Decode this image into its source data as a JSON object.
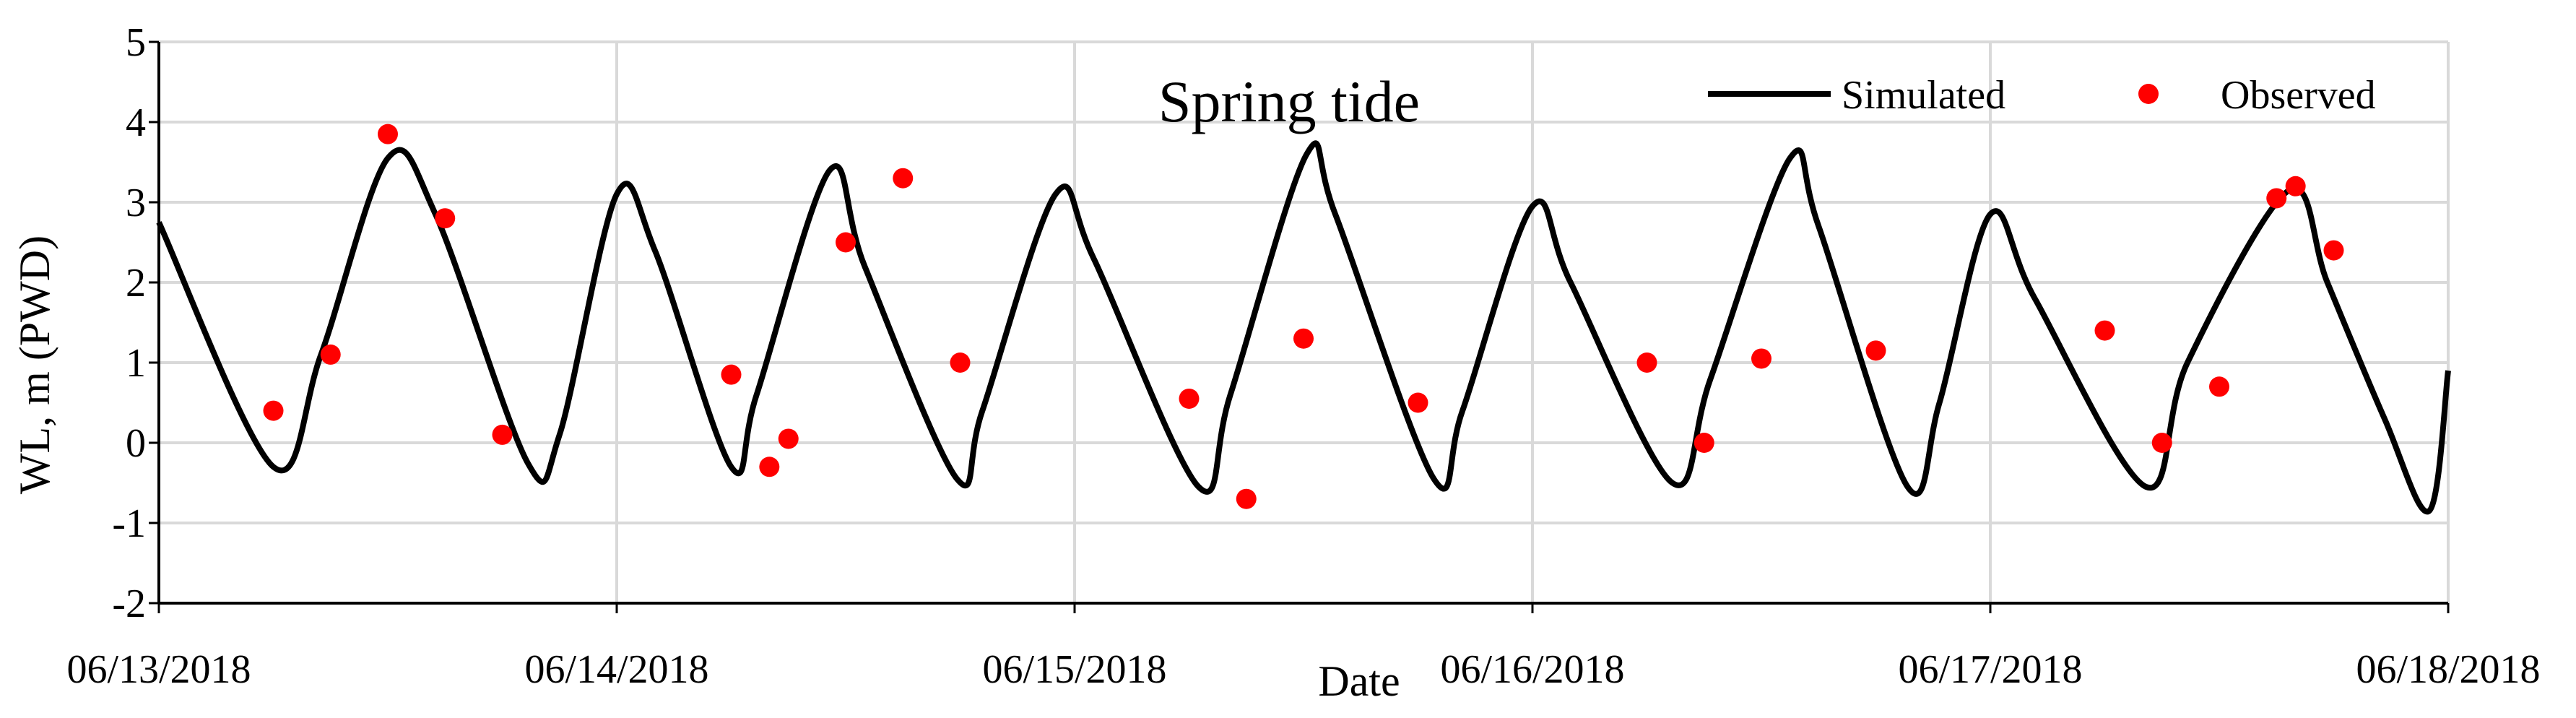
{
  "chart_data": {
    "type": "line",
    "title": "",
    "annotation": "Spring tide",
    "xlabel": "Date",
    "ylabel": "WL, m (PWD)",
    "ylim": [
      -2,
      5
    ],
    "yticks": [
      -2,
      -1,
      0,
      1,
      2,
      3,
      4,
      5
    ],
    "xlim": [
      "06/13/2018",
      "06/18/2018"
    ],
    "xticks": [
      "06/13/2018",
      "06/14/2018",
      "06/15/2018",
      "06/16/2018",
      "06/17/2018",
      "06/18/2018"
    ],
    "grid": true,
    "legend_position": "top-right",
    "series": [
      {
        "name": "Simulated",
        "style": "line",
        "color": "#000000",
        "x": [
          "06/13/2018 00:00",
          "06/13/2018 06:00",
          "06/13/2018 08:30",
          "06/13/2018 12:00",
          "06/13/2018 14:30",
          "06/13/2018 19:20",
          "06/13/2018 21:00",
          "06/14/2018 00:00",
          "06/14/2018 02:00",
          "06/14/2018 06:00",
          "06/14/2018 07:20",
          "06/14/2018 11:10",
          "06/14/2018 13:00",
          "06/14/2018 17:50",
          "06/14/2018 19:10",
          "06/14/2018 23:00",
          "06/15/2018 01:00",
          "06/15/2018 06:30",
          "06/15/2018 08:10",
          "06/15/2018 12:10",
          "06/15/2018 13:40",
          "06/15/2018 18:50",
          "06/15/2018 20:20",
          "06/16/2018 00:00",
          "06/16/2018 02:00",
          "06/16/2018 07:20",
          "06/16/2018 09:20",
          "06/16/2018 13:30",
          "06/16/2018 15:00",
          "06/16/2018 19:40",
          "06/16/2018 21:20",
          "06/17/2018 00:00",
          "06/17/2018 02:20",
          "06/17/2018 08:10",
          "06/17/2018 10:20",
          "06/17/2018 15:40",
          "06/17/2018 17:40",
          "06/17/2018 20:40",
          "06/17/2018 23:00",
          "06/18/2018 00:00"
        ],
        "y": [
          2.75,
          -0.3,
          1.1,
          3.55,
          2.85,
          -0.25,
          0.1,
          3.1,
          2.4,
          -0.3,
          0.6,
          3.4,
          2.2,
          -0.45,
          0.4,
          3.1,
          2.3,
          -0.55,
          0.6,
          3.6,
          2.85,
          -0.45,
          0.4,
          2.95,
          2.0,
          -0.5,
          0.8,
          3.55,
          2.7,
          -0.55,
          0.5,
          2.85,
          1.8,
          -0.55,
          1.0,
          3.15,
          2.0,
          0.3,
          -0.85,
          0.9
        ]
      },
      {
        "name": "Observed",
        "style": "markers",
        "color": "#ff0000",
        "x": [
          "06/13/2018 06:00",
          "06/13/2018 09:00",
          "06/13/2018 12:00",
          "06/13/2018 15:00",
          "06/13/2018 18:00",
          "06/14/2018 06:00",
          "06/14/2018 08:00",
          "06/14/2018 09:00",
          "06/14/2018 12:00",
          "06/14/2018 15:00",
          "06/14/2018 18:00",
          "06/15/2018 06:00",
          "06/15/2018 09:00",
          "06/15/2018 12:00",
          "06/15/2018 18:00",
          "06/16/2018 06:00",
          "06/16/2018 09:00",
          "06/16/2018 12:00",
          "06/16/2018 18:00",
          "06/17/2018 06:00",
          "06/17/2018 09:00",
          "06/17/2018 12:00",
          "06/17/2018 15:00",
          "06/17/2018 16:00",
          "06/17/2018 18:00"
        ],
        "y": [
          0.4,
          1.1,
          3.85,
          2.8,
          0.1,
          0.85,
          -0.3,
          0.05,
          2.5,
          3.3,
          1.0,
          0.55,
          -0.7,
          1.3,
          0.5,
          1.0,
          0.0,
          1.05,
          1.15,
          1.4,
          0.0,
          0.7,
          3.05,
          3.2,
          2.4
        ]
      }
    ]
  }
}
